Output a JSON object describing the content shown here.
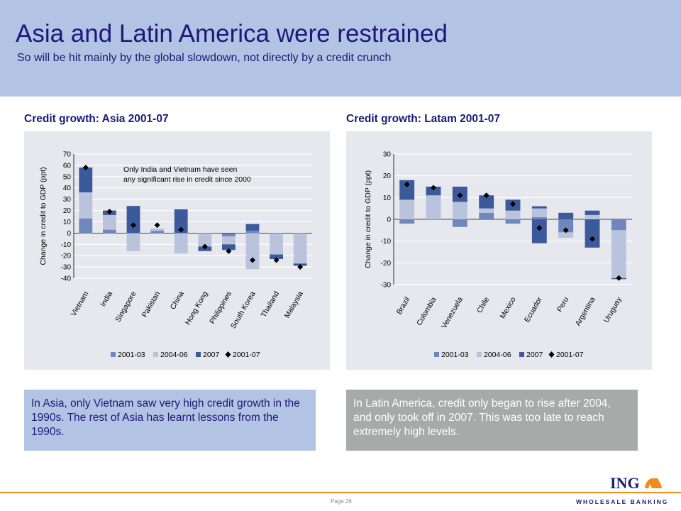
{
  "header": {
    "title": "Asia and Latin America were restrained",
    "subtitle": "So will be hit mainly by the global slowdown, not directly by a credit crunch"
  },
  "colors": {
    "series_2001_03": "#6f87bd",
    "series_2004_06": "#b9c3dc",
    "series_2007": "#3c5a9b",
    "marker": "#000000",
    "panel": "#e6e8ee"
  },
  "chart_data": [
    {
      "type": "bar",
      "heading": "Credit growth: Asia 2001-07",
      "ylabel": "Change in credit to GDP (ppt)",
      "ylim": [
        -40,
        70
      ],
      "yticks": [
        70,
        60,
        50,
        40,
        30,
        20,
        10,
        0,
        -10,
        -20,
        -30,
        -40
      ],
      "annotation": [
        "Only India and Vietnam have seen",
        "any significant rise in credit since 2000"
      ],
      "categories": [
        "Vietnam",
        "India",
        "Singapore",
        "Pakistan",
        "China",
        "Hong Kong",
        "Philippines",
        "South Korea",
        "Thailand",
        "Malaysia"
      ],
      "series": [
        {
          "name": "2001-03",
          "values": [
            13,
            3,
            0,
            2,
            0,
            0,
            -3,
            2,
            0,
            0
          ]
        },
        {
          "name": "2004-06",
          "values": [
            23,
            13,
            -16,
            2,
            -18,
            -12,
            -7,
            -32,
            -19,
            -27
          ]
        },
        {
          "name": "2007",
          "values": [
            22,
            4,
            24,
            0,
            21,
            -4,
            -5,
            6,
            -4,
            -2
          ]
        },
        {
          "name": "2001-07",
          "marker": "diamond",
          "values": [
            58,
            19,
            7,
            7,
            3,
            -12,
            -16,
            -24,
            -24,
            -30
          ]
        }
      ],
      "legend": [
        "2001-03",
        "2004-06",
        "2007",
        "2001-07"
      ],
      "legend_position": "bottom",
      "grid": true
    },
    {
      "type": "bar",
      "heading": "Credit growth: Latam 2001-07",
      "ylabel": "Change in credit to GDP (ppt)",
      "ylim": [
        -30,
        30
      ],
      "yticks": [
        30,
        20,
        10,
        0,
        -10,
        -20,
        -30
      ],
      "categories": [
        "Brazil",
        "Colombia",
        "Venezuela",
        "Chile",
        "Mexico",
        "Ecuador",
        "Peru",
        "Argentina",
        "Uruguay"
      ],
      "series": [
        {
          "name": "2001-03",
          "values": [
            -2,
            0,
            -3.5,
            3,
            -2,
            1,
            -6,
            0,
            -5
          ]
        },
        {
          "name": "2004-06",
          "values": [
            9,
            11,
            8,
            2,
            4,
            4,
            -2.5,
            2,
            -22
          ]
        },
        {
          "name": "2007",
          "values": [
            9,
            4,
            7,
            6,
            5,
            1,
            3,
            2,
            0
          ]
        },
        {
          "name": "2001-07",
          "marker": "diamond",
          "values": [
            16,
            14.5,
            11,
            11,
            7,
            -4,
            -5,
            -9,
            -27
          ]
        }
      ],
      "extra_negative": [
        0,
        0,
        0,
        0,
        0,
        -11,
        0,
        -13,
        -27.5
      ],
      "legend": [
        "2001-03",
        "2004-06",
        "2007",
        "2001-07"
      ],
      "legend_position": "bottom",
      "grid": true
    }
  ],
  "notes": {
    "asia": "In Asia, only Vietnam saw very high credit growth in the 1990s. The rest of Asia has learnt lessons from the 1990s.",
    "latam": "In Latin America, credit only began to rise after 2004, and only took off in 2007. This was too late to reach extremely high levels."
  },
  "footer": {
    "page": "Page 26",
    "logo": "ING",
    "tagline": "WHOLESALE BANKING"
  }
}
